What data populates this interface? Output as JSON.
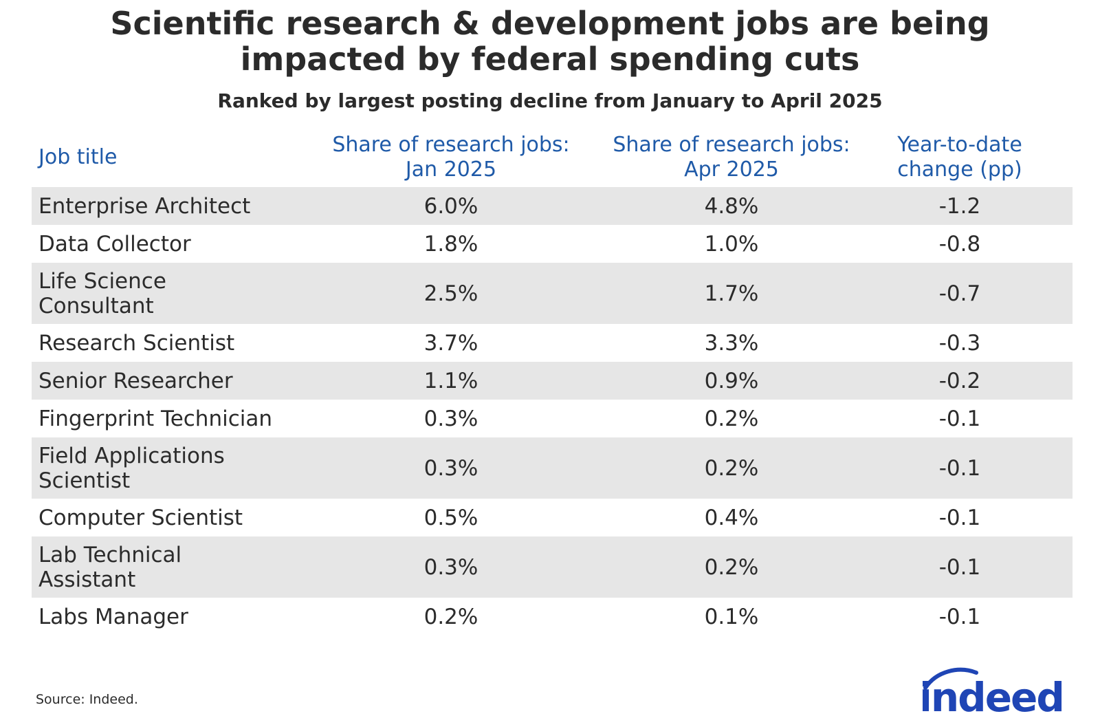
{
  "title_line1": "Scientific research & development jobs are being",
  "title_line2": "impacted by federal spending cuts",
  "subtitle": "Ranked by largest posting decline from January to April 2025",
  "source": "Source: Indeed.",
  "logo_text": "indeed",
  "colors": {
    "header_text": "#1f5aa8",
    "row_shade": "#e6e6e6",
    "logo": "#1f45b5"
  },
  "chart_data": {
    "type": "table",
    "columns": [
      "Job title",
      "Share of research jobs: Jan 2025",
      "Share of research jobs: Apr 2025",
      "Year-to-date change (pp)"
    ],
    "rows": [
      {
        "job": "Enterprise Architect",
        "jan": "6.0%",
        "apr": "4.8%",
        "change": "-1.2"
      },
      {
        "job": "Data Collector",
        "jan": "1.8%",
        "apr": "1.0%",
        "change": "-0.8"
      },
      {
        "job": "Life Science Consultant",
        "jan": "2.5%",
        "apr": "1.7%",
        "change": "-0.7"
      },
      {
        "job": "Research Scientist",
        "jan": "3.7%",
        "apr": "3.3%",
        "change": "-0.3"
      },
      {
        "job": "Senior Researcher",
        "jan": "1.1%",
        "apr": "0.9%",
        "change": "-0.2"
      },
      {
        "job": "Fingerprint Technician",
        "jan": "0.3%",
        "apr": "0.2%",
        "change": "-0.1"
      },
      {
        "job": "Field Applications Scientist",
        "jan": "0.3%",
        "apr": "0.2%",
        "change": "-0.1"
      },
      {
        "job": "Computer Scientist",
        "jan": "0.5%",
        "apr": "0.4%",
        "change": "-0.1"
      },
      {
        "job": "Lab Technical Assistant",
        "jan": "0.3%",
        "apr": "0.2%",
        "change": "-0.1"
      },
      {
        "job": "Labs Manager",
        "jan": "0.2%",
        "apr": "0.1%",
        "change": "-0.1"
      }
    ]
  }
}
